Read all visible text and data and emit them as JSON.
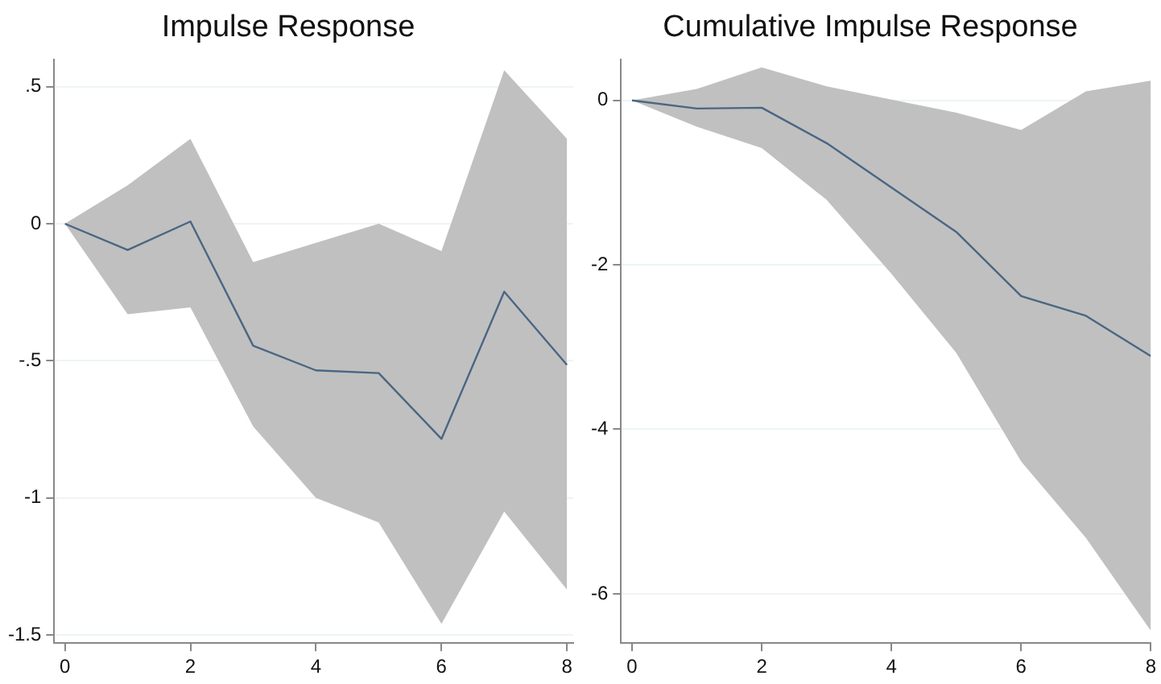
{
  "chart_data": [
    {
      "type": "line",
      "title": "Impulse Response",
      "x": [
        0,
        1,
        2,
        3,
        4,
        5,
        6,
        7,
        8
      ],
      "series": [
        {
          "color": "#4a6683",
          "values": [
            0,
            -0.096,
            0.008,
            -0.445,
            -0.535,
            -0.545,
            -0.785,
            -0.248,
            -0.515
          ],
          "lower": [
            0,
            -0.33,
            -0.305,
            -0.74,
            -1.0,
            -1.09,
            -1.46,
            -1.05,
            -1.335
          ],
          "upper": [
            0,
            0.14,
            0.31,
            -0.14,
            -0.07,
            0,
            -0.1,
            0.56,
            0.31
          ]
        }
      ],
      "xlim": [
        -0.17,
        8.1
      ],
      "xticks": [
        0,
        2,
        4,
        6,
        8
      ],
      "ylim": [
        -1.53,
        0.6
      ],
      "yticks": [
        {
          "value": -1.5,
          "label": "-1.5"
        },
        {
          "value": -1,
          "label": "-1"
        },
        {
          "value": -0.5,
          "label": "-.5"
        },
        0,
        {
          "value": 0.5,
          "label": ".5"
        }
      ],
      "grid": "y"
    },
    {
      "type": "line",
      "title": "Cumulative Impulse Response",
      "x": [
        0,
        1,
        2,
        3,
        4,
        5,
        6,
        7,
        8
      ],
      "series": [
        {
          "color": "#4a6683",
          "values": [
            0,
            -0.1,
            -0.09,
            -0.52,
            -1.06,
            -1.6,
            -2.38,
            -2.62,
            -3.11
          ],
          "lower": [
            0,
            -0.32,
            -0.58,
            -1.21,
            -2.11,
            -3.07,
            -4.39,
            -5.32,
            -6.45
          ],
          "upper": [
            0,
            0.14,
            0.4,
            0.17,
            0.01,
            -0.15,
            -0.36,
            0.11,
            0.24
          ]
        }
      ],
      "xlim": [
        -0.17,
        8
      ],
      "xticks": [
        0,
        2,
        4,
        6,
        8
      ],
      "ylim": [
        -6.6,
        0.5
      ],
      "yticks": [
        -6,
        -4,
        -2,
        0
      ],
      "grid": "y"
    }
  ]
}
